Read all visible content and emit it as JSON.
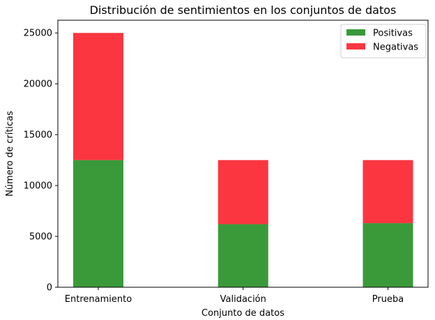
{
  "chart_data": {
    "type": "bar",
    "stacked": true,
    "title": "Distribución de sentimientos en los conjuntos de datos",
    "xlabel": "Conjunto de datos",
    "ylabel": "Número de críticas",
    "categories": [
      "Entrenamiento",
      "Validación",
      "Prueba"
    ],
    "ylim": [
      0,
      26250
    ],
    "yticks": [
      0,
      5000,
      10000,
      15000,
      20000,
      25000
    ],
    "legend_position": "top-right",
    "grid": false,
    "series": [
      {
        "name": "Positivas",
        "color": "#3a9a3a",
        "values": [
          12500,
          6200,
          6300
        ]
      },
      {
        "name": "Negativas",
        "color": "#fb3640",
        "values": [
          12500,
          6300,
          6200
        ]
      }
    ]
  }
}
